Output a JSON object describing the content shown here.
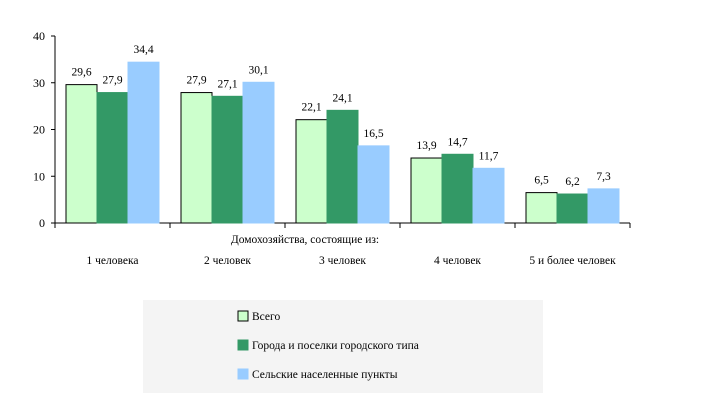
{
  "chart_data": {
    "type": "bar",
    "title": "",
    "xlabel": "Домохозяйства, состоящие из:",
    "ylabel": "",
    "ylim": [
      0,
      40
    ],
    "yticks": [
      "0",
      "10",
      "20",
      "30",
      "40"
    ],
    "categories": [
      "1 человека",
      "2 человек",
      "3 человек",
      "4 человек",
      "5 и более человек"
    ],
    "series": [
      {
        "name": "Всего",
        "values": [
          29.6,
          27.9,
          22.1,
          13.9,
          6.5
        ],
        "labels": [
          "29,6",
          "27,9",
          "22,1",
          "13,9",
          "6,5"
        ],
        "fill": "#ccffcc",
        "stroke": "#000000"
      },
      {
        "name": "Города и поселки городского типа",
        "values": [
          27.9,
          27.1,
          24.1,
          14.7,
          6.2
        ],
        "labels": [
          "27,9",
          "27,1",
          "24,1",
          "14,7",
          "6,2"
        ],
        "fill": "#339966",
        "stroke": "#339966"
      },
      {
        "name": "Сельские населенные пункты",
        "values": [
          34.4,
          30.1,
          16.5,
          11.7,
          7.3
        ],
        "labels": [
          "34,4",
          "30,1",
          "16,5",
          "11,7",
          "7,3"
        ],
        "fill": "#99ccff",
        "stroke": "#99ccff"
      }
    ],
    "grid": false,
    "legend_position": "bottom",
    "legend_background": "#f4f4f4"
  }
}
